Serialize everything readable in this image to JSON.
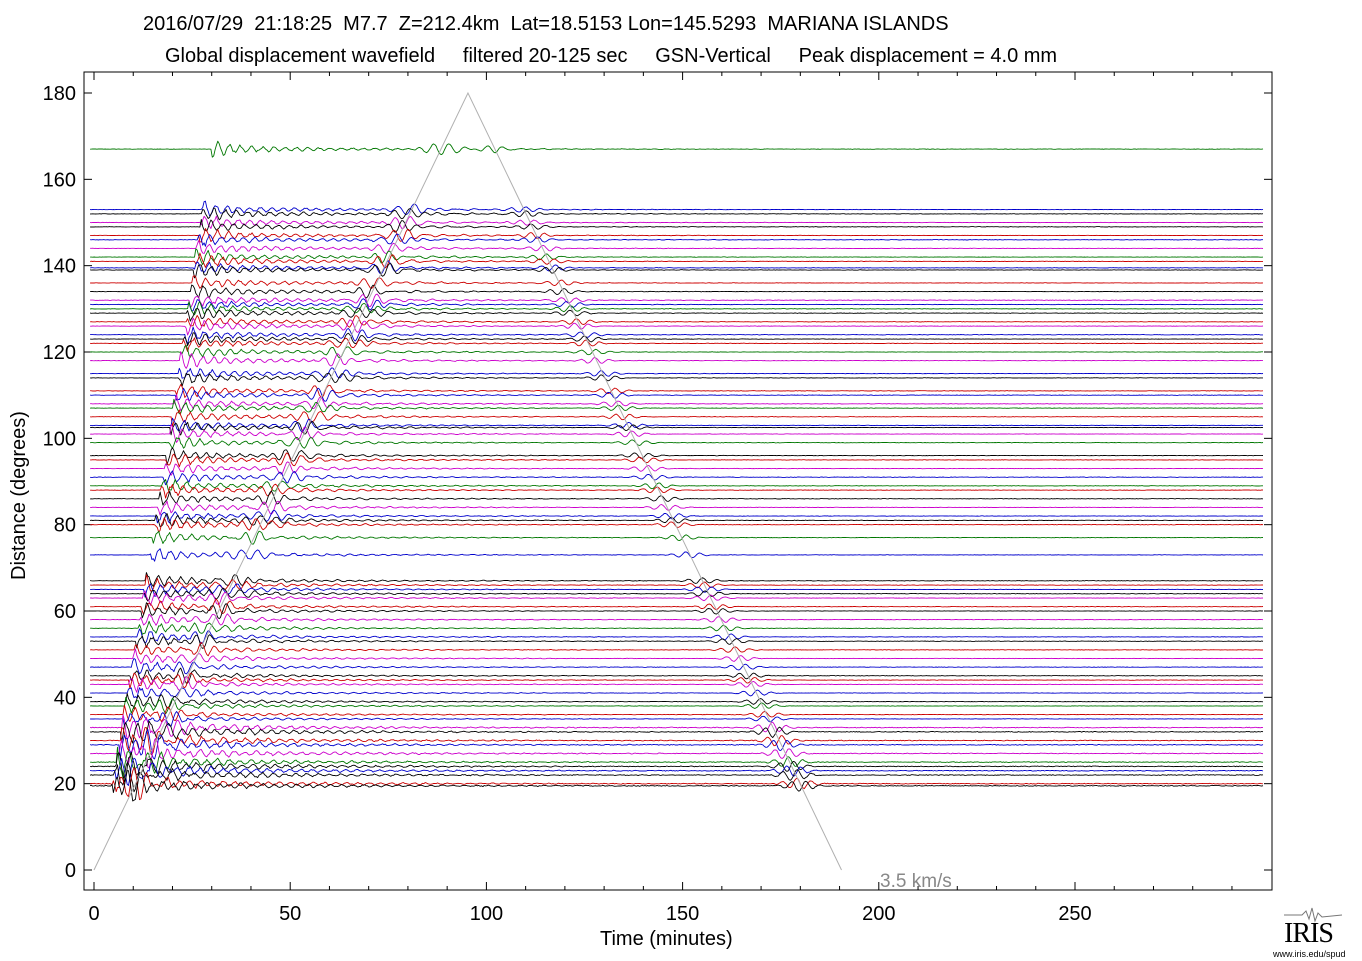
{
  "title": {
    "line1": "2016/07/29  21:18:25  M7.7  Z=212.4km  Lat=18.5153 Lon=145.5293  MARIANA ISLANDS",
    "line2": "Global displacement wavefield     filtered 20-125 sec     GSN-Vertical     Peak displacement = 4.0 mm"
  },
  "logo": {
    "text": "IRIS",
    "url": "www.iris.edu/spud"
  },
  "chart_data": {
    "type": "line",
    "title": "Global displacement wavefield",
    "xlabel": "Time (minutes)",
    "ylabel": "Distance (degrees)",
    "xlim": [
      -2,
      298
    ],
    "ylim": [
      -5,
      185
    ],
    "xticks": [
      0,
      50,
      100,
      150,
      200,
      250
    ],
    "yticks": [
      0,
      20,
      40,
      60,
      80,
      100,
      120,
      140,
      160,
      180
    ],
    "velocity_annotation": "3.5 km/s",
    "velocity_line": {
      "apex_time": 95.3,
      "apex_distance": 180,
      "end_time": 190.5,
      "end_distance": 0
    },
    "grid": false,
    "colors": [
      "#000000",
      "#cc0000",
      "#0000cc",
      "#007700",
      "#cc00cc"
    ],
    "traces": [
      {
        "distance": 167,
        "color": "#007700"
      },
      {
        "distance": 153,
        "color": "#0000cc"
      },
      {
        "distance": 152,
        "color": "#000000"
      },
      {
        "distance": 150,
        "color": "#cc00cc"
      },
      {
        "distance": 149,
        "color": "#000000"
      },
      {
        "distance": 147,
        "color": "#cc0000"
      },
      {
        "distance": 146,
        "color": "#0000cc"
      },
      {
        "distance": 144,
        "color": "#cc00cc"
      },
      {
        "distance": 142,
        "color": "#007700"
      },
      {
        "distance": 141,
        "color": "#cc0000"
      },
      {
        "distance": 139.5,
        "color": "#0000cc"
      },
      {
        "distance": 139,
        "color": "#000000"
      },
      {
        "distance": 136,
        "color": "#cc0000"
      },
      {
        "distance": 134,
        "color": "#000000"
      },
      {
        "distance": 132,
        "color": "#cc00cc"
      },
      {
        "distance": 131,
        "color": "#0000cc"
      },
      {
        "distance": 130,
        "color": "#007700"
      },
      {
        "distance": 129,
        "color": "#000000"
      },
      {
        "distance": 127,
        "color": "#cc0000"
      },
      {
        "distance": 126,
        "color": "#cc00cc"
      },
      {
        "distance": 124,
        "color": "#0000cc"
      },
      {
        "distance": 123,
        "color": "#000000"
      },
      {
        "distance": 122,
        "color": "#cc0000"
      },
      {
        "distance": 120,
        "color": "#007700"
      },
      {
        "distance": 118,
        "color": "#cc00cc"
      },
      {
        "distance": 115,
        "color": "#0000cc"
      },
      {
        "distance": 114,
        "color": "#000000"
      },
      {
        "distance": 111,
        "color": "#cc0000"
      },
      {
        "distance": 110,
        "color": "#0000cc"
      },
      {
        "distance": 108,
        "color": "#cc00cc"
      },
      {
        "distance": 107,
        "color": "#007700"
      },
      {
        "distance": 105,
        "color": "#cc0000"
      },
      {
        "distance": 103,
        "color": "#0000cc"
      },
      {
        "distance": 102.5,
        "color": "#000000"
      },
      {
        "distance": 101,
        "color": "#cc00cc"
      },
      {
        "distance": 99,
        "color": "#007700"
      },
      {
        "distance": 96,
        "color": "#000000"
      },
      {
        "distance": 95,
        "color": "#cc0000"
      },
      {
        "distance": 93,
        "color": "#cc00cc"
      },
      {
        "distance": 91,
        "color": "#0000cc"
      },
      {
        "distance": 89,
        "color": "#007700"
      },
      {
        "distance": 88,
        "color": "#cc0000"
      },
      {
        "distance": 86,
        "color": "#000000"
      },
      {
        "distance": 84,
        "color": "#cc00cc"
      },
      {
        "distance": 82,
        "color": "#0000cc"
      },
      {
        "distance": 81,
        "color": "#000000"
      },
      {
        "distance": 80,
        "color": "#cc0000"
      },
      {
        "distance": 77,
        "color": "#007700"
      },
      {
        "distance": 73,
        "color": "#0000cc"
      },
      {
        "distance": 67,
        "color": "#000000"
      },
      {
        "distance": 66,
        "color": "#cc0000"
      },
      {
        "distance": 65,
        "color": "#0000cc"
      },
      {
        "distance": 64,
        "color": "#000000"
      },
      {
        "distance": 63,
        "color": "#cc00cc"
      },
      {
        "distance": 61,
        "color": "#cc0000"
      },
      {
        "distance": 60,
        "color": "#000000"
      },
      {
        "distance": 58,
        "color": "#cc00cc"
      },
      {
        "distance": 56,
        "color": "#007700"
      },
      {
        "distance": 54,
        "color": "#0000cc"
      },
      {
        "distance": 53,
        "color": "#000000"
      },
      {
        "distance": 51,
        "color": "#cc0000"
      },
      {
        "distance": 49,
        "color": "#cc00cc"
      },
      {
        "distance": 47,
        "color": "#0000cc"
      },
      {
        "distance": 45,
        "color": "#000000"
      },
      {
        "distance": 44,
        "color": "#cc0000"
      },
      {
        "distance": 43,
        "color": "#cc00cc"
      },
      {
        "distance": 41,
        "color": "#0000cc"
      },
      {
        "distance": 39,
        "color": "#000000"
      },
      {
        "distance": 38,
        "color": "#007700"
      },
      {
        "distance": 36,
        "color": "#cc0000"
      },
      {
        "distance": 35,
        "color": "#0000cc"
      },
      {
        "distance": 33,
        "color": "#cc00cc"
      },
      {
        "distance": 32,
        "color": "#000000"
      },
      {
        "distance": 30,
        "color": "#cc0000"
      },
      {
        "distance": 29,
        "color": "#0000cc"
      },
      {
        "distance": 27,
        "color": "#cc00cc"
      },
      {
        "distance": 25,
        "color": "#007700"
      },
      {
        "distance": 24,
        "color": "#000000"
      },
      {
        "distance": 23,
        "color": "#0000cc"
      },
      {
        "distance": 22,
        "color": "#000000"
      },
      {
        "distance": 20,
        "color": "#cc0000"
      },
      {
        "distance": 19.5,
        "color": "#000000"
      }
    ]
  }
}
